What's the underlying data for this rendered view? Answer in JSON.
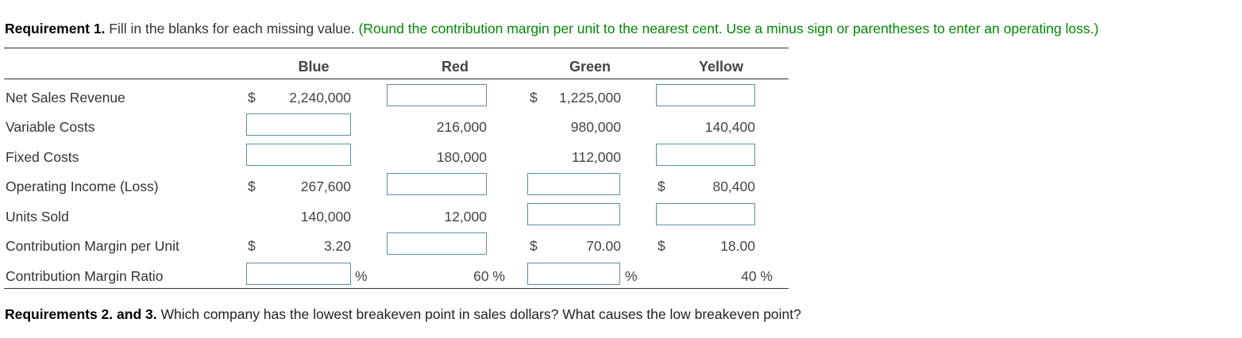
{
  "requirement1": {
    "label": "Requirement 1.",
    "text": " Fill in the blanks for each missing value. ",
    "hint": "(Round the contribution margin per unit to the nearest cent. Use a minus sign or parentheses to enter an operating loss.)"
  },
  "table": {
    "columns": [
      "Blue",
      "Red",
      "Green",
      "Yellow"
    ],
    "rows": [
      {
        "label": "Net Sales Revenue",
        "blue": {
          "prefix": "$",
          "value": "2,240,000"
        },
        "red": {
          "input": ""
        },
        "green": {
          "prefix": "$",
          "value": "1,225,000"
        },
        "yellow": {
          "input": ""
        }
      },
      {
        "label": "Variable Costs",
        "blue": {
          "input": ""
        },
        "red": {
          "value": "216,000"
        },
        "green": {
          "value": "980,000"
        },
        "yellow": {
          "value": "140,400"
        }
      },
      {
        "label": "Fixed Costs",
        "blue": {
          "input": ""
        },
        "red": {
          "value": "180,000"
        },
        "green": {
          "value": "112,000"
        },
        "yellow": {
          "input": ""
        }
      },
      {
        "label": "Operating Income (Loss)",
        "blue": {
          "prefix": "$",
          "value": "267,600"
        },
        "red": {
          "input": ""
        },
        "green": {
          "input": ""
        },
        "yellow": {
          "prefix": "$",
          "value": "80,400"
        }
      },
      {
        "label": "Units Sold",
        "blue": {
          "value": "140,000"
        },
        "red": {
          "value": "12,000"
        },
        "green": {
          "input": ""
        },
        "yellow": {
          "input": ""
        }
      },
      {
        "label": "Contribution Margin per Unit",
        "blue": {
          "prefix": "$",
          "value": "3.20"
        },
        "red": {
          "input": ""
        },
        "green": {
          "prefix": "$",
          "value": "70.00"
        },
        "yellow": {
          "prefix": "$",
          "value": "18.00"
        }
      },
      {
        "label": "Contribution Margin Ratio",
        "blue": {
          "input": "",
          "suffix": "%"
        },
        "red": {
          "value": "60 %"
        },
        "green": {
          "input": "",
          "suffix": "%"
        },
        "yellow": {
          "value": "40 %"
        }
      }
    ]
  },
  "requirements23": {
    "label": "Requirements 2. and 3.",
    "text": " Which company has the lowest breakeven point in sales dollars? What causes the low breakeven point?"
  }
}
